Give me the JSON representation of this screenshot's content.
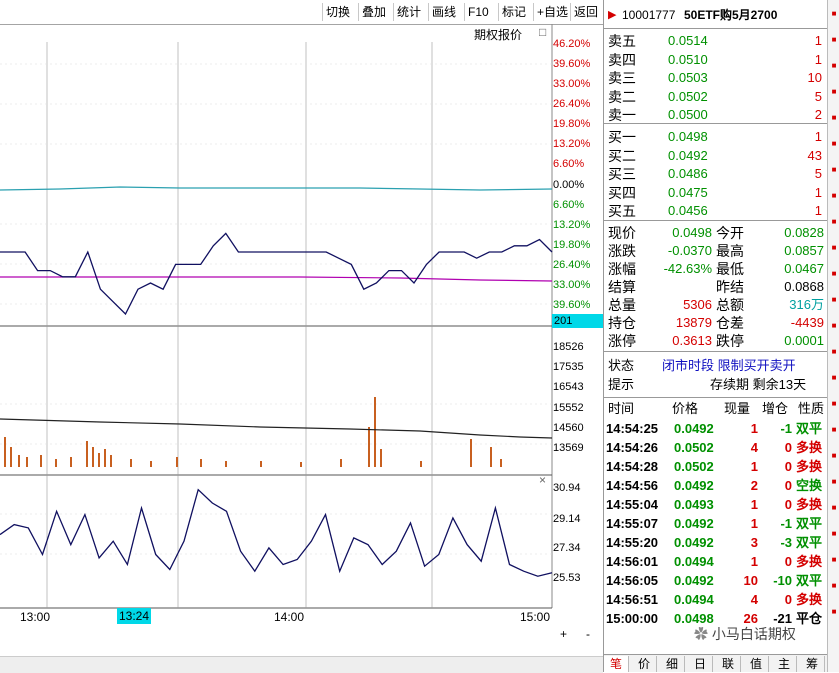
{
  "toolbar": {
    "buttons": [
      "切换",
      "叠加",
      "统计",
      "画线",
      "F10",
      "标记",
      "+自选",
      "返回"
    ]
  },
  "chart": {
    "title": "期权报价",
    "title_btn": "□",
    "pct_labels_up": [
      "46.20%",
      "39.60%",
      "33.00%",
      "26.40%",
      "19.80%",
      "13.20%",
      "6.60%"
    ],
    "pct_zero": "0.00%",
    "pct_labels_down": [
      "6.60%",
      "13.20%",
      "19.80%",
      "26.40%",
      "33.00%",
      "39.60%"
    ],
    "cursor_value": "201",
    "volume_labels": [
      "18526",
      "17535",
      "16543",
      "15552",
      "14560",
      "13569"
    ],
    "indicator_close": "×",
    "indicator_labels": [
      "30.94",
      "29.14",
      "27.34",
      "25.53"
    ],
    "time_labels": [
      "13:00",
      "13:24",
      "14:00",
      "15:00"
    ],
    "zoom_plus": "+",
    "zoom_minus": "-",
    "price_series": [
      48,
      48,
      48,
      45,
      45,
      44,
      44,
      48,
      42,
      40,
      38,
      42,
      43,
      42,
      46,
      46,
      46,
      49,
      51,
      48,
      48,
      48,
      48,
      48,
      48,
      48,
      48,
      47,
      46,
      42,
      43,
      45,
      45,
      43,
      46,
      48,
      48,
      48,
      47,
      48,
      48,
      49,
      49,
      50,
      48
    ],
    "indicator_series": [
      28.2,
      28.8,
      28.6,
      27.0,
      29.6,
      27.6,
      29.4,
      26.8,
      27.8,
      26.4,
      29.8,
      27.0,
      26.1,
      27.8,
      30.9,
      30.1,
      29.6,
      27.2,
      26.0,
      27.4,
      26.4,
      26.7,
      27.8,
      29.4,
      26.0,
      28.0,
      27.6,
      26.4,
      27.2,
      28.9,
      26.3,
      27.0,
      29.2,
      27.6,
      26.6,
      29.8,
      26.4,
      26.0,
      25.7,
      25.9
    ]
  },
  "quote": {
    "code": "10001777",
    "name": "50ETF购5月2700",
    "asks": [
      {
        "label": "卖五",
        "price": "0.0514",
        "vol": "1"
      },
      {
        "label": "卖四",
        "price": "0.0510",
        "vol": "1"
      },
      {
        "label": "卖三",
        "price": "0.0503",
        "vol": "10"
      },
      {
        "label": "卖二",
        "price": "0.0502",
        "vol": "5"
      },
      {
        "label": "卖一",
        "price": "0.0500",
        "vol": "2"
      }
    ],
    "bids": [
      {
        "label": "买一",
        "price": "0.0498",
        "vol": "1"
      },
      {
        "label": "买二",
        "price": "0.0492",
        "vol": "43"
      },
      {
        "label": "买三",
        "price": "0.0486",
        "vol": "5"
      },
      {
        "label": "买四",
        "price": "0.0475",
        "vol": "1"
      },
      {
        "label": "买五",
        "price": "0.0456",
        "vol": "1"
      }
    ],
    "stats": [
      {
        "l1": "现价",
        "v1": "0.0498",
        "l2": "今开",
        "v2": "0.0828",
        "c1": "green",
        "c2": "green"
      },
      {
        "l1": "涨跌",
        "v1": "-0.0370",
        "l2": "最高",
        "v2": "0.0857",
        "c1": "green",
        "c2": "green"
      },
      {
        "l1": "涨幅",
        "v1": "-42.63%",
        "l2": "最低",
        "v2": "0.0467",
        "c1": "green",
        "c2": "green"
      },
      {
        "l1": "结算",
        "v1": "",
        "l2": "昨结",
        "v2": "0.0868",
        "c1": "blk",
        "c2": "blk"
      },
      {
        "l1": "总量",
        "v1": "5306",
        "l2": "总额",
        "v2": "316万",
        "c1": "red",
        "c2": "teal"
      },
      {
        "l1": "持仓",
        "v1": "13879",
        "l2": "仓差",
        "v2": "-4439",
        "c1": "red",
        "c2": "red"
      },
      {
        "l1": "涨停",
        "v1": "0.3613",
        "l2": "跌停",
        "v2": "0.0001",
        "c1": "red",
        "c2": "green"
      }
    ],
    "status_label": "状态",
    "status_value": "闭市时段 限制买开卖开",
    "hint_label": "提示",
    "hint_value": "存续期 剩余13天",
    "ticks_header": [
      "时间",
      "价格",
      "现量",
      "增仓",
      "性质"
    ],
    "ticks": [
      {
        "t": "14:54:25",
        "p": "0.0492",
        "v": "1",
        "z": "-1",
        "n": "双平",
        "pc": "green",
        "zc": "green",
        "nc": "green"
      },
      {
        "t": "14:54:26",
        "p": "0.0502",
        "v": "4",
        "z": "0",
        "n": "多换",
        "pc": "green",
        "zc": "red",
        "nc": "red"
      },
      {
        "t": "14:54:28",
        "p": "0.0502",
        "v": "1",
        "z": "0",
        "n": "多换",
        "pc": "green",
        "zc": "red",
        "nc": "red"
      },
      {
        "t": "14:54:56",
        "p": "0.0492",
        "v": "2",
        "z": "0",
        "n": "空换",
        "pc": "green",
        "zc": "red",
        "nc": "green"
      },
      {
        "t": "14:55:04",
        "p": "0.0493",
        "v": "1",
        "z": "0",
        "n": "多换",
        "pc": "green",
        "zc": "red",
        "nc": "red"
      },
      {
        "t": "14:55:07",
        "p": "0.0492",
        "v": "1",
        "z": "-1",
        "n": "双平",
        "pc": "green",
        "zc": "green",
        "nc": "green"
      },
      {
        "t": "14:55:20",
        "p": "0.0492",
        "v": "3",
        "z": "-3",
        "n": "双平",
        "pc": "green",
        "zc": "green",
        "nc": "green"
      },
      {
        "t": "14:56:01",
        "p": "0.0494",
        "v": "1",
        "z": "0",
        "n": "多换",
        "pc": "green",
        "zc": "red",
        "nc": "red"
      },
      {
        "t": "14:56:05",
        "p": "0.0492",
        "v": "10",
        "z": "-10",
        "n": "双平",
        "pc": "green",
        "zc": "green",
        "nc": "green"
      },
      {
        "t": "14:56:51",
        "p": "0.0494",
        "v": "4",
        "z": "0",
        "n": "多换",
        "pc": "green",
        "zc": "red",
        "nc": "red"
      },
      {
        "t": "15:00:00",
        "p": "0.0498",
        "v": "26",
        "z": "-21",
        "n": "平仓",
        "pc": "green",
        "zc": "blk",
        "nc": "blk"
      }
    ],
    "bottom_tabs": [
      "笔",
      "价",
      "细",
      "日",
      "联",
      "值",
      "主",
      "筹"
    ],
    "watermark": "小马白话期权"
  }
}
